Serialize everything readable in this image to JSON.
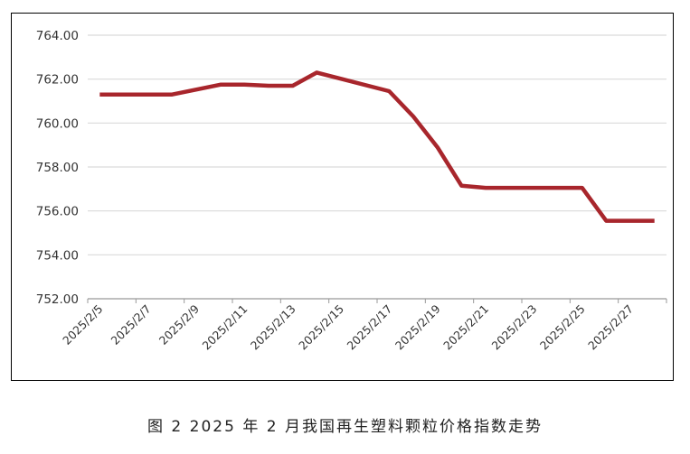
{
  "caption": "图 2  2025 年 2 月我国再生塑料颗粒价格指数走势",
  "chart_data": {
    "type": "line",
    "title": "",
    "xlabel": "",
    "ylabel": "",
    "ylim": [
      752,
      764
    ],
    "y_ticks": [
      "752.00",
      "754.00",
      "756.00",
      "758.00",
      "760.00",
      "762.00",
      "764.00"
    ],
    "x_tick_labels": [
      "2025/2/5",
      "2025/2/7",
      "2025/2/9",
      "2025/2/11",
      "2025/2/13",
      "2025/2/15",
      "2025/2/17",
      "2025/2/19",
      "2025/2/21",
      "2025/2/23",
      "2025/2/25",
      "2025/2/27"
    ],
    "grid": true,
    "legend": false,
    "series": [
      {
        "color": "#a8262c",
        "points": [
          {
            "x": "2025/2/5",
            "y": 761.3
          },
          {
            "x": "2025/2/6",
            "y": 761.3
          },
          {
            "x": "2025/2/7",
            "y": 761.3
          },
          {
            "x": "2025/2/8",
            "y": 761.3
          },
          {
            "x": "2025/2/10",
            "y": 761.75
          },
          {
            "x": "2025/2/11",
            "y": 761.75
          },
          {
            "x": "2025/2/12",
            "y": 761.7
          },
          {
            "x": "2025/2/13",
            "y": 761.7
          },
          {
            "x": "2025/2/14",
            "y": 762.3
          },
          {
            "x": "2025/2/17",
            "y": 761.45
          },
          {
            "x": "2025/2/18",
            "y": 760.3
          },
          {
            "x": "2025/2/19",
            "y": 758.9
          },
          {
            "x": "2025/2/20",
            "y": 757.15
          },
          {
            "x": "2025/2/21",
            "y": 757.05
          },
          {
            "x": "2025/2/22",
            "y": 757.05
          },
          {
            "x": "2025/2/25",
            "y": 757.05
          },
          {
            "x": "2025/2/26",
            "y": 755.55
          },
          {
            "x": "2025/2/28",
            "y": 755.55
          }
        ]
      }
    ]
  },
  "colors": {
    "line": "#a8262c",
    "grid": "#d9d9d9",
    "axis": "#999999"
  }
}
